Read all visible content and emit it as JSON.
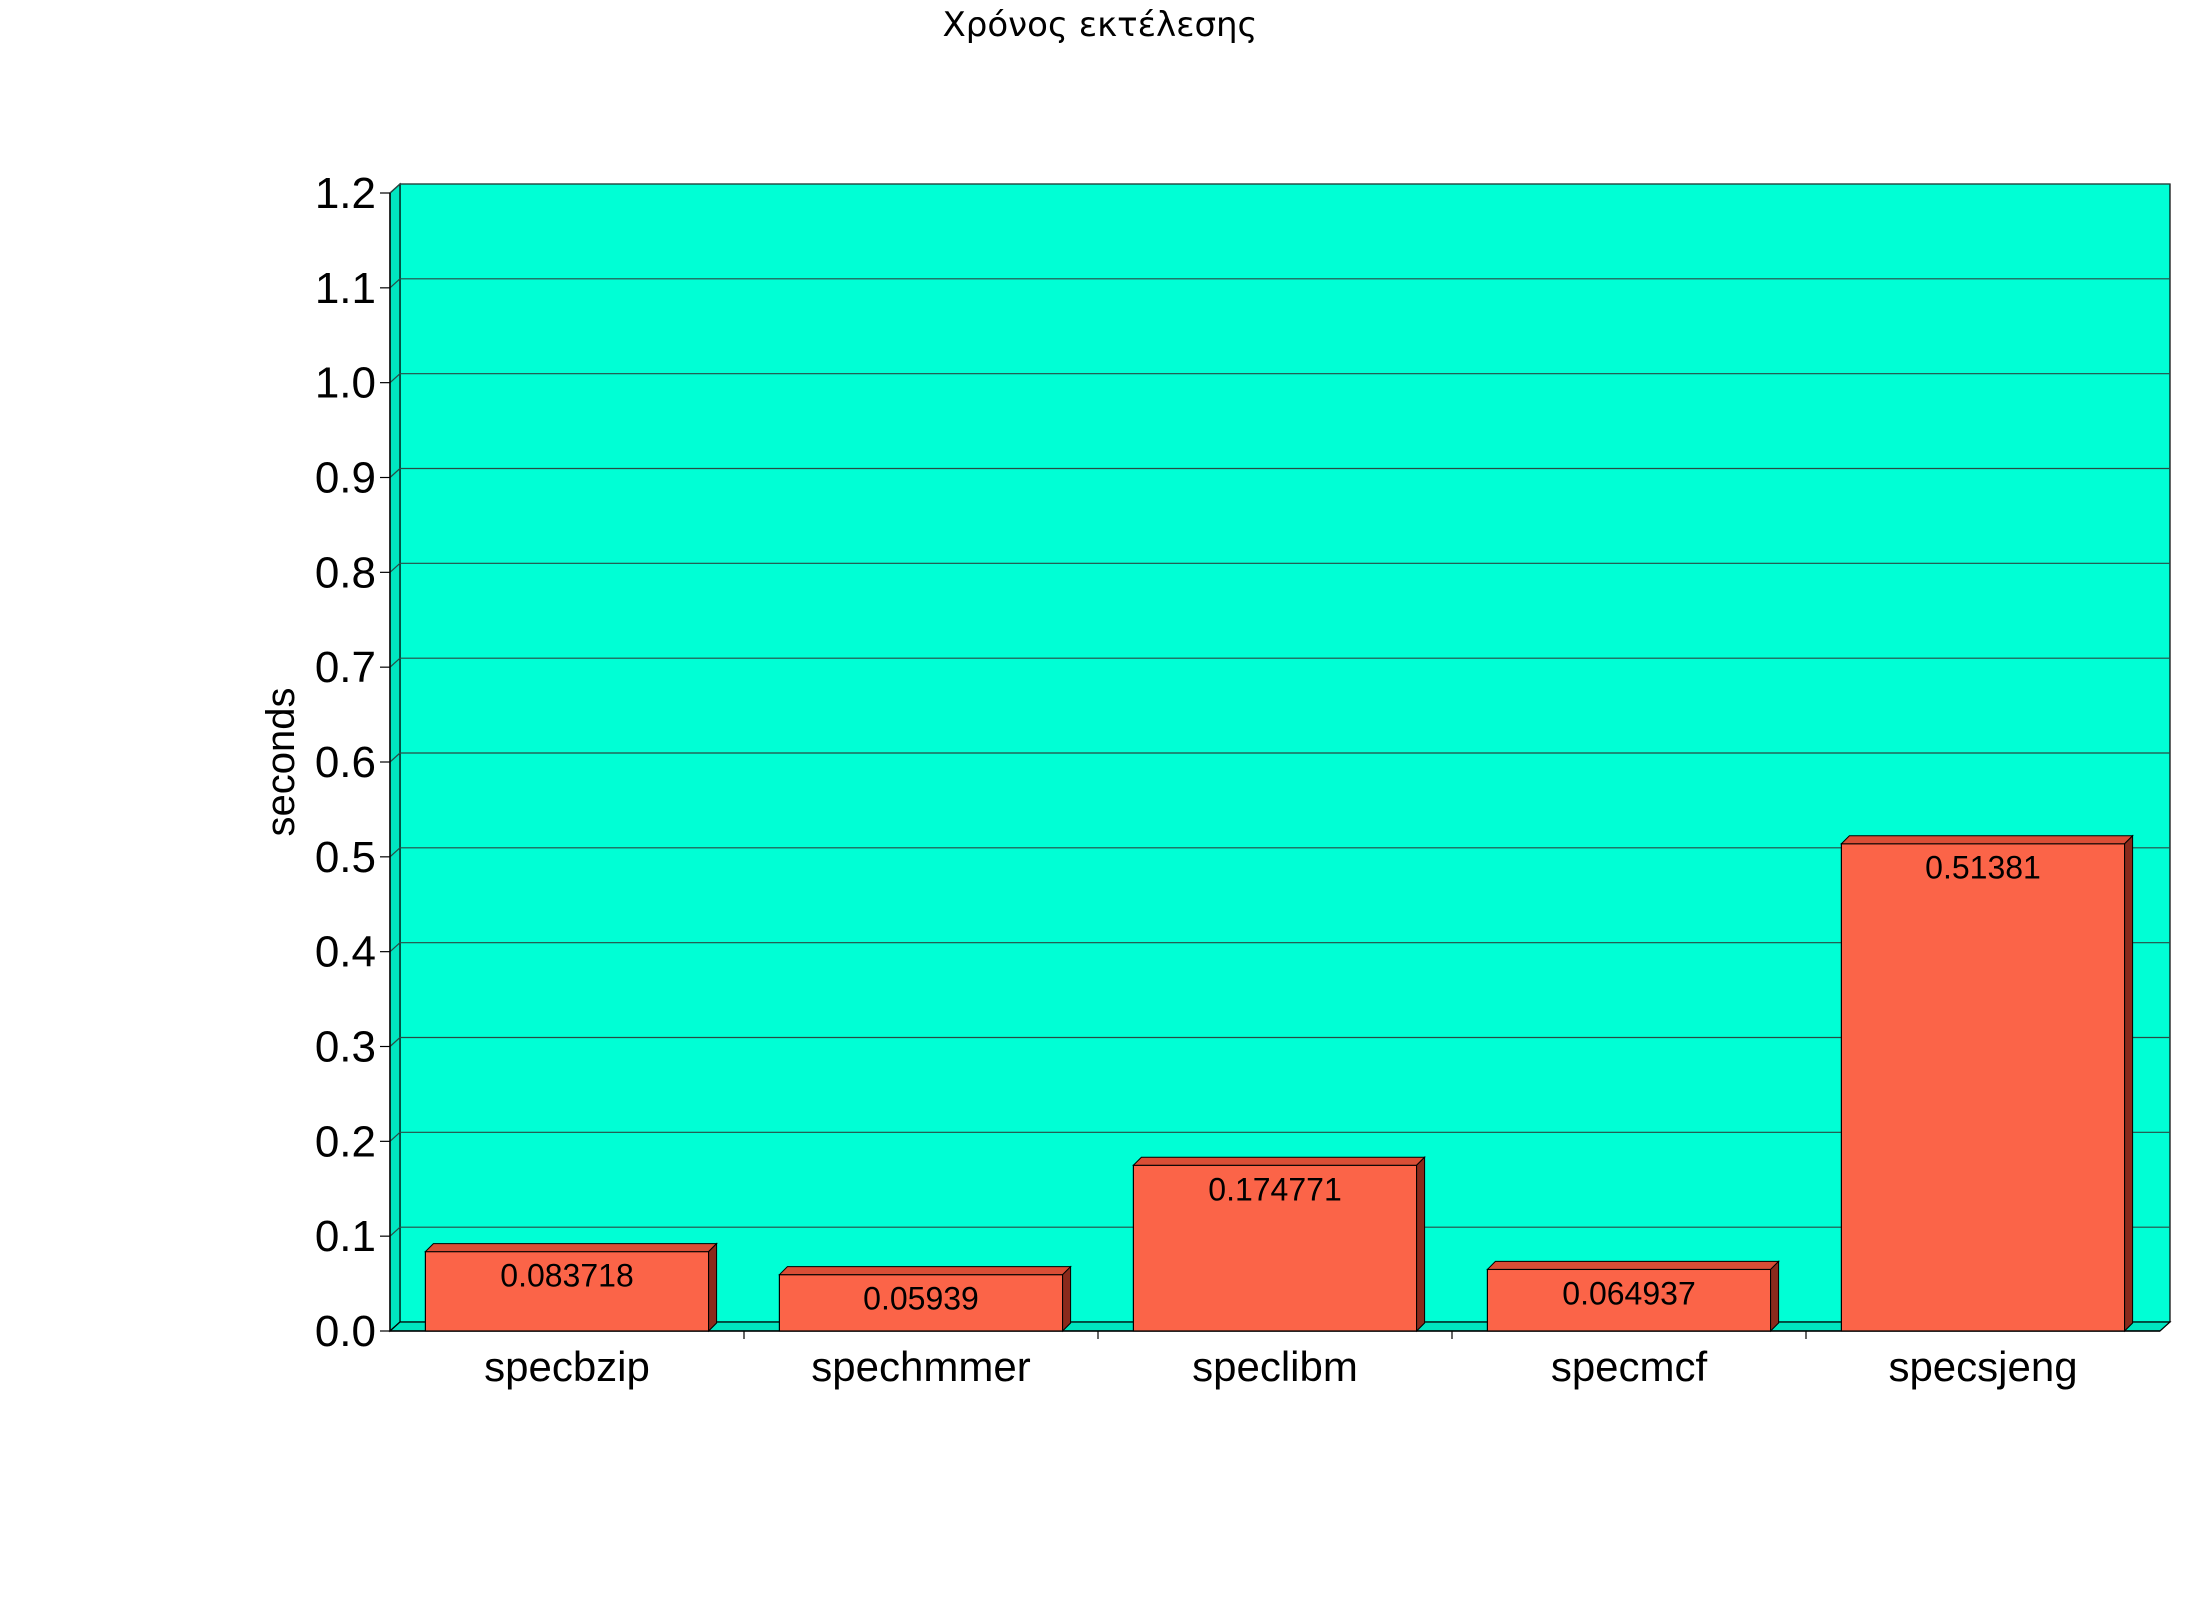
{
  "chart_data": {
    "type": "bar",
    "title": "Χρόνος εκτέλεσης",
    "ylabel": "seconds",
    "xlabel": "",
    "ylim": [
      0,
      1.2
    ],
    "yticks": [
      "0.0",
      "0.1",
      "0.2",
      "0.3",
      "0.4",
      "0.5",
      "0.6",
      "0.7",
      "0.8",
      "0.9",
      "1.0",
      "1.1",
      "1.2"
    ],
    "categories": [
      "specbzip",
      "spechmmer",
      "speclibm",
      "specmcf",
      "specsjeng"
    ],
    "values": [
      0.083718,
      0.05939,
      0.174771,
      0.064937,
      0.51381
    ],
    "data_labels": [
      "0.083718",
      "0.05939",
      "0.174771",
      "0.064937",
      "0.51381"
    ],
    "grid": true,
    "legend": "none",
    "colors": {
      "plot_background": "#00FFD5",
      "bar_front": "#FB6448",
      "bar_top": "#D94E36",
      "bar_side": "#8A2A1C",
      "grid": "#2a4a44"
    }
  }
}
